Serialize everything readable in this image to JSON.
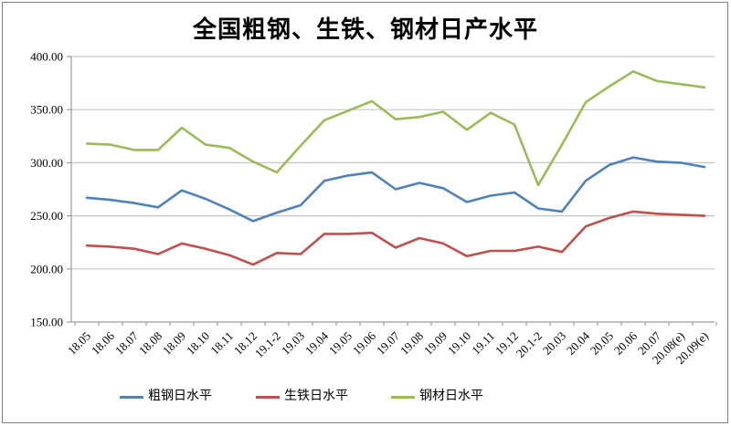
{
  "chart": {
    "title": "全国粗钢、生铁、钢材日产水平"
  },
  "chart_data": {
    "type": "line",
    "title": "全国粗钢、生铁、钢材日产水平",
    "categories": [
      "18.05",
      "18.06",
      "18.07",
      "18.08",
      "18.09",
      "18.10",
      "18.11",
      "18.12",
      "19.1-2",
      "19.03",
      "19.04",
      "19.05",
      "19.06",
      "19.07",
      "19.08",
      "19.09",
      "19.10",
      "19.11",
      "19.12",
      "20.1-2",
      "20.03",
      "20.04",
      "20.05",
      "20.06",
      "20.07",
      "20.08(e)",
      "20.09(e)"
    ],
    "series": [
      {
        "name": "粗钢日水平",
        "color": "#4F81BD",
        "values": [
          267,
          265,
          262,
          258,
          274,
          266,
          256,
          245,
          253,
          260,
          283,
          288,
          291,
          275,
          281,
          276,
          263,
          269,
          272,
          257,
          254,
          283,
          298,
          305,
          301,
          300,
          296
        ]
      },
      {
        "name": "生铁日水平",
        "color": "#C0504D",
        "values": [
          222,
          221,
          219,
          214,
          224,
          219,
          213,
          204,
          215,
          214,
          233,
          233,
          234,
          220,
          229,
          224,
          212,
          217,
          217,
          221,
          216,
          240,
          248,
          254,
          252,
          251,
          250
        ]
      },
      {
        "name": "钢材日水平",
        "color": "#9BBB59",
        "values": [
          318,
          317,
          312,
          312,
          333,
          317,
          314,
          301,
          291,
          316,
          340,
          349,
          358,
          341,
          343,
          348,
          331,
          347,
          336,
          279,
          317,
          357,
          372,
          386,
          377,
          374,
          371
        ]
      }
    ],
    "ylim": [
      150,
      400
    ],
    "ytick_step": 50,
    "ytick_labels": [
      "150.00",
      "200.00",
      "250.00",
      "300.00",
      "350.00",
      "400.00"
    ],
    "xlabel": "",
    "ylabel": "",
    "grid": "horizontal",
    "legend_position": "bottom",
    "axis_color": "#9c9c9c",
    "grid_color": "#c6c6c6",
    "border_color": "#7f7f7f"
  }
}
